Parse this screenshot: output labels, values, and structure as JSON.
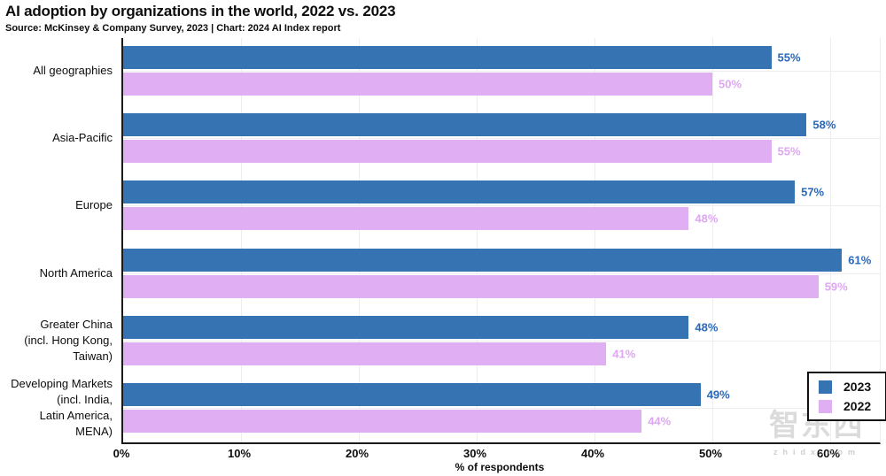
{
  "header": {
    "title": "AI adoption by organizations in the world, 2022 vs. 2023",
    "source": "Source: McKinsey & Company Survey, 2023 | Chart: 2024 AI Index report"
  },
  "chart_data": {
    "type": "bar",
    "orientation": "horizontal",
    "title": "AI adoption by organizations in the world, 2022 vs. 2023",
    "xlabel": "% of respondents",
    "ylabel": "",
    "categories": [
      [
        "All geographies"
      ],
      [
        "Asia-Pacific"
      ],
      [
        "Europe"
      ],
      [
        "North America"
      ],
      [
        "Greater China",
        "(incl. Hong Kong,",
        "Taiwan)"
      ],
      [
        "Developing Markets",
        "(incl. India,",
        "Latin America,",
        "MENA)"
      ]
    ],
    "series": [
      {
        "name": "2023",
        "values": [
          55,
          58,
          57,
          61,
          48,
          49
        ],
        "color": "#3673b2",
        "label_color": "#2a68ba"
      },
      {
        "name": "2022",
        "values": [
          50,
          55,
          48,
          59,
          41,
          44
        ],
        "color": "#e0aef2",
        "label_color": "#dfa7f2"
      }
    ],
    "value_label_suffix": "%",
    "x_ticks": [
      {
        "value": 0,
        "label": "0%"
      },
      {
        "value": 10,
        "label": "10%"
      },
      {
        "value": 20,
        "label": "20%"
      },
      {
        "value": 30,
        "label": "30%"
      },
      {
        "value": 40,
        "label": "40%"
      },
      {
        "value": 50,
        "label": "50%"
      },
      {
        "value": 60,
        "label": "60%"
      }
    ],
    "xlim": [
      0,
      64
    ],
    "grid": true,
    "legend_position": "bottom-right"
  },
  "watermark": {
    "logo": "智东西",
    "domain": "zhidx.com"
  }
}
